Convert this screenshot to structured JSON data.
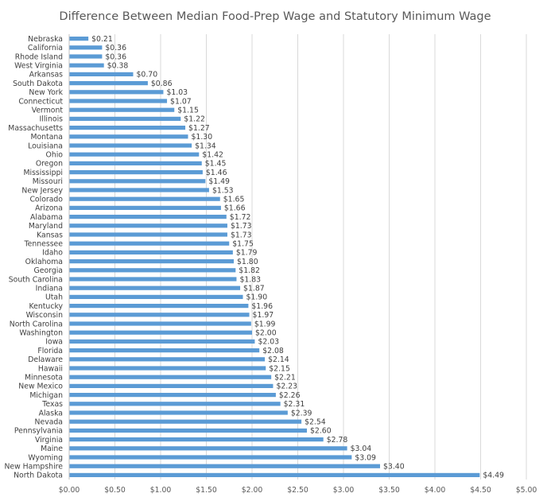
{
  "chart_data": {
    "type": "bar",
    "orientation": "horizontal",
    "title": "Difference Between Median Food-Prep Wage and Statutory Minimum Wage",
    "xlabel": "",
    "ylabel": "",
    "xlim": [
      0,
      5
    ],
    "grid": true,
    "legend": "none",
    "bar_color": "#5b9bd5",
    "x_ticks": [
      "$0.00",
      "$0.50",
      "$1.00",
      "$1.50",
      "$2.00",
      "$2.50",
      "$3.00",
      "$3.50",
      "$4.00",
      "$4.50",
      "$5.00"
    ],
    "categories": [
      "Nebraska",
      "California",
      "Rhode Island",
      "West Virginia",
      "Arkansas",
      "South Dakota",
      "New York",
      "Connecticut",
      "Vermont",
      "Illinois",
      "Massachusetts",
      "Montana",
      "Louisiana",
      "Ohio",
      "Oregon",
      "Mississippi",
      "Missouri",
      "New Jersey",
      "Colorado",
      "Arizona",
      "Alabama",
      "Maryland",
      "Kansas",
      "Tennessee",
      "Idaho",
      "Oklahoma",
      "Georgia",
      "South Carolina",
      "Indiana",
      "Utah",
      "Kentucky",
      "Wisconsin",
      "North Carolina",
      "Washington",
      "Iowa",
      "Florida",
      "Delaware",
      "Hawaii",
      "Minnesota",
      "New Mexico",
      "Michigan",
      "Texas",
      "Alaska",
      "Nevada",
      "Pennsylvania",
      "Virginia",
      "Maine",
      "Wyoming",
      "New Hampshire",
      "North Dakota"
    ],
    "values": [
      0.21,
      0.36,
      0.36,
      0.38,
      0.7,
      0.86,
      1.03,
      1.07,
      1.15,
      1.22,
      1.27,
      1.3,
      1.34,
      1.42,
      1.45,
      1.46,
      1.49,
      1.53,
      1.65,
      1.66,
      1.72,
      1.73,
      1.73,
      1.75,
      1.79,
      1.8,
      1.82,
      1.83,
      1.87,
      1.9,
      1.96,
      1.97,
      1.99,
      2.0,
      2.03,
      2.08,
      2.14,
      2.15,
      2.21,
      2.23,
      2.26,
      2.31,
      2.39,
      2.54,
      2.6,
      2.78,
      3.04,
      3.09,
      3.4,
      4.49
    ],
    "value_labels": [
      "$0.21",
      "$0.36",
      "$0.36",
      "$0.38",
      "$0.70",
      "$0.86",
      "$1.03",
      "$1.07",
      "$1.15",
      "$1.22",
      "$1.27",
      "$1.30",
      "$1.34",
      "$1.42",
      "$1.45",
      "$1.46",
      "$1.49",
      "$1.53",
      "$1.65",
      "$1.66",
      "$1.72",
      "$1.73",
      "$1.73",
      "$1.75",
      "$1.79",
      "$1.80",
      "$1.82",
      "$1.83",
      "$1.87",
      "$1.90",
      "$1.96",
      "$1.97",
      "$1.99",
      "$2.00",
      "$2.03",
      "$2.08",
      "$2.14",
      "$2.15",
      "$2.21",
      "$2.23",
      "$2.26",
      "$2.31",
      "$2.39",
      "$2.54",
      "$2.60",
      "$2.78",
      "$3.04",
      "$3.09",
      "$3.40",
      "$4.49"
    ]
  }
}
